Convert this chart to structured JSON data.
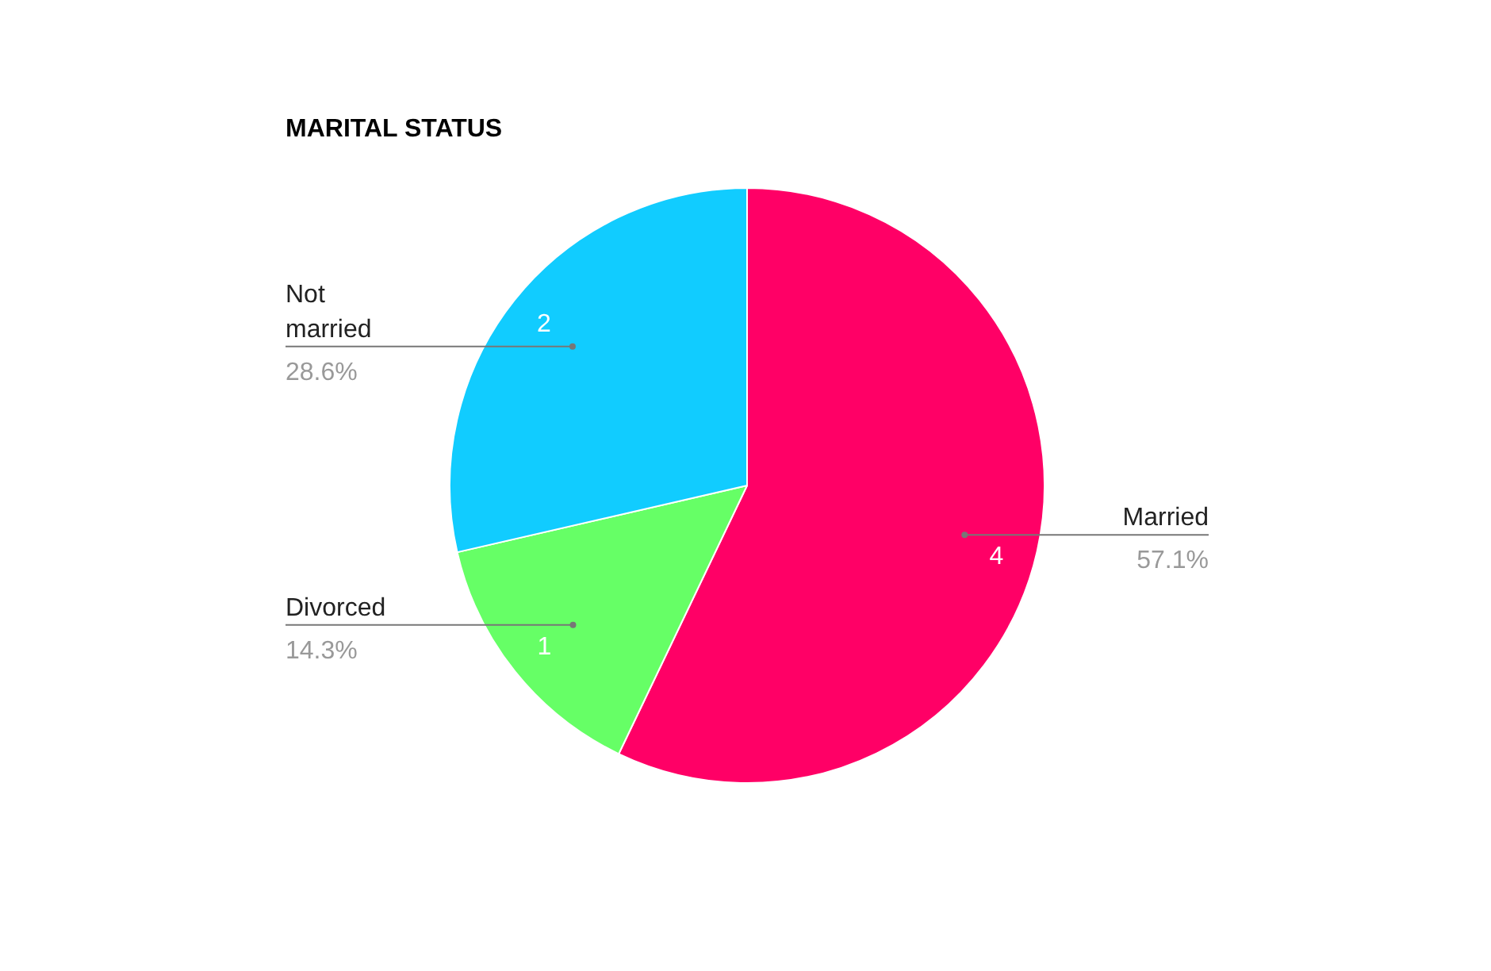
{
  "chart_data": {
    "type": "pie",
    "title": "MARITAL STATUS",
    "categories": [
      "Married",
      "Divorced",
      "Not married"
    ],
    "values": [
      57.1,
      14.3,
      28.6
    ],
    "colors": [
      "#ff0066",
      "#66ff66",
      "#11ccff"
    ],
    "value_labels": [
      "57.1%",
      "14.3%",
      "28.6%"
    ],
    "annotations": [
      {
        "text": "4",
        "x": "Married"
      },
      {
        "text": "1",
        "x": "Divorced"
      },
      {
        "text": "2",
        "x": "Not married"
      }
    ],
    "legend": false
  }
}
